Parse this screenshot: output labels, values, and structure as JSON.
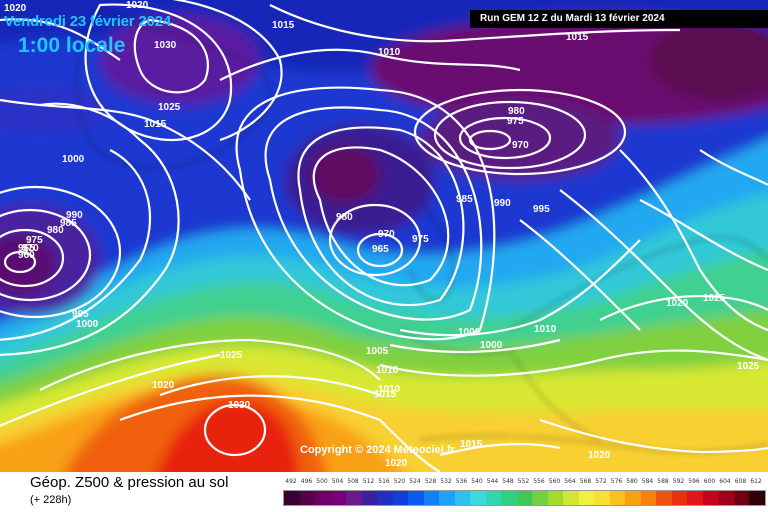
{
  "header": {
    "date": "Vendredi 23 février 2024",
    "time": "1:00 locale",
    "run": "Run GEM 12 Z du Mardi 13 février 2024"
  },
  "copyright": "Copyright © 2024 Meteociel.fr",
  "footer": {
    "title": "Géop. Z500 & pression au sol",
    "subtitle": "(+ 228h)"
  },
  "scale": {
    "labels": [
      "492",
      "496",
      "500",
      "504",
      "508",
      "512",
      "516",
      "520",
      "524",
      "528",
      "532",
      "536",
      "540",
      "544",
      "548",
      "552",
      "556",
      "560",
      "564",
      "568",
      "572",
      "576",
      "580",
      "584",
      "588",
      "592",
      "596",
      "600",
      "604",
      "608",
      "612"
    ],
    "colors": [
      "#3a0030",
      "#55004a",
      "#6c0064",
      "#7a0078",
      "#6a1a8a",
      "#3c20a0",
      "#2030c0",
      "#1040d8",
      "#0a5cf0",
      "#1480f5",
      "#20a0f8",
      "#30c0f0",
      "#40d8e0",
      "#30d8b0",
      "#30d080",
      "#40c850",
      "#70d040",
      "#a0dc30",
      "#d0e830",
      "#f0f040",
      "#f8e030",
      "#f8c020",
      "#f8a010",
      "#f88010",
      "#f05010",
      "#e83010",
      "#e01818",
      "#c80018",
      "#a00018",
      "#700010",
      "#300008"
    ]
  },
  "isobars": {
    "labels": [
      "1020",
      "1015",
      "1030",
      "1025",
      "1015",
      "1010",
      "1000",
      "1020",
      "990",
      "985",
      "980",
      "975",
      "970",
      "965",
      "960",
      "995",
      "1000",
      "980",
      "975",
      "970",
      "980",
      "970",
      "965",
      "975",
      "985",
      "990",
      "995",
      "1000",
      "1000",
      "1005",
      "1010",
      "1010",
      "1015",
      "1015",
      "1020",
      "1025",
      "1030",
      "1020",
      "1025",
      "1020",
      "1025",
      "1010",
      "1020",
      "1015"
    ]
  }
}
